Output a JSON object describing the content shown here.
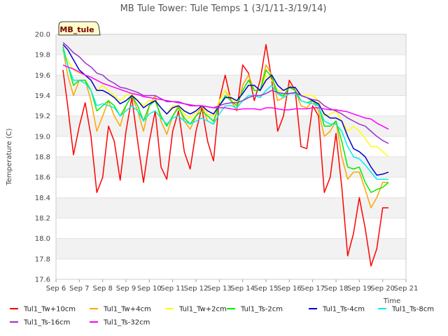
{
  "chart_data": {
    "type": "line",
    "title": "MB Tule Tower: Tule Temps 1 (3/1/11-3/19/14)",
    "xlabel": "Time",
    "ylabel": "Temperature (C)",
    "ylim": [
      17.6,
      20.0
    ],
    "xlim": [
      6,
      21
    ],
    "grid": "horizontal-bands",
    "legend_position": "bottom",
    "badge": "MB_tule",
    "x_ticks": [
      {
        "value": 6,
        "label": "Sep 6"
      },
      {
        "value": 7,
        "label": "Sep 7"
      },
      {
        "value": 8,
        "label": "Sep 8"
      },
      {
        "value": 9,
        "label": "Sep 9"
      },
      {
        "value": 10,
        "label": "Sep 10"
      },
      {
        "value": 11,
        "label": "Sep 11"
      },
      {
        "value": 12,
        "label": "Sep 12"
      },
      {
        "value": 13,
        "label": "Sep 13"
      },
      {
        "value": 14,
        "label": "Sep 14"
      },
      {
        "value": 15,
        "label": "Sep 15"
      },
      {
        "value": 16,
        "label": "Sep 16"
      },
      {
        "value": 17,
        "label": "Sep 17"
      },
      {
        "value": 18,
        "label": "Sep 18"
      },
      {
        "value": 19,
        "label": "Sep 19"
      },
      {
        "value": 20,
        "label": "Sep 20"
      },
      {
        "value": 21,
        "label": "Sep 21"
      }
    ],
    "y_ticks": [
      {
        "value": 17.6,
        "label": "17.6"
      },
      {
        "value": 17.8,
        "label": "17.8"
      },
      {
        "value": 18.0,
        "label": "18.0"
      },
      {
        "value": 18.2,
        "label": "18.2"
      },
      {
        "value": 18.4,
        "label": "18.4"
      },
      {
        "value": 18.6,
        "label": "18.6"
      },
      {
        "value": 18.8,
        "label": "18.8"
      },
      {
        "value": 19.0,
        "label": "19.0"
      },
      {
        "value": 19.2,
        "label": "19.2"
      },
      {
        "value": 19.4,
        "label": "19.4"
      },
      {
        "value": 19.6,
        "label": "19.6"
      },
      {
        "value": 19.8,
        "label": "19.8"
      },
      {
        "value": 20.0,
        "label": "20.0"
      }
    ],
    "x": [
      6.3,
      6.5,
      6.75,
      7.0,
      7.25,
      7.5,
      7.75,
      8.0,
      8.25,
      8.5,
      8.75,
      9.0,
      9.25,
      9.5,
      9.75,
      10.0,
      10.25,
      10.5,
      10.75,
      11.0,
      11.25,
      11.5,
      11.75,
      12.0,
      12.25,
      12.5,
      12.75,
      13.0,
      13.25,
      13.5,
      13.75,
      14.0,
      14.25,
      14.5,
      14.75,
      15.0,
      15.25,
      15.5,
      15.75,
      16.0,
      16.25,
      16.5,
      16.75,
      17.0,
      17.25,
      17.5,
      17.75,
      18.0,
      18.25,
      18.5,
      18.75,
      19.0,
      19.25,
      19.5,
      19.75,
      20.0,
      20.25
    ],
    "series": [
      {
        "name": "Tul1_Tw+10cm",
        "color": "#ff0000",
        "values": [
          19.65,
          19.3,
          18.82,
          19.1,
          19.33,
          19.0,
          18.45,
          18.6,
          19.1,
          18.95,
          18.57,
          19.05,
          19.38,
          18.95,
          18.55,
          18.95,
          19.25,
          18.7,
          18.58,
          19.05,
          19.25,
          18.85,
          18.68,
          19.05,
          19.28,
          18.95,
          18.76,
          19.35,
          19.6,
          19.35,
          19.25,
          19.7,
          19.62,
          19.35,
          19.55,
          19.9,
          19.55,
          19.05,
          19.2,
          19.55,
          19.45,
          18.9,
          18.88,
          19.3,
          19.2,
          18.45,
          18.6,
          19.03,
          18.5,
          17.83,
          18.05,
          18.4,
          18.1,
          17.73,
          17.9,
          18.3,
          18.3
        ]
      },
      {
        "name": "Tul1_Tw+4cm",
        "color": "#ffa500",
        "values": [
          19.85,
          19.6,
          19.4,
          19.55,
          19.55,
          19.35,
          19.05,
          19.2,
          19.35,
          19.2,
          19.1,
          19.3,
          19.4,
          19.25,
          19.05,
          19.3,
          19.4,
          19.15,
          19.02,
          19.2,
          19.3,
          19.15,
          19.07,
          19.2,
          19.3,
          19.15,
          19.12,
          19.35,
          19.45,
          19.35,
          19.25,
          19.5,
          19.6,
          19.45,
          19.45,
          19.7,
          19.6,
          19.35,
          19.38,
          19.5,
          19.45,
          19.3,
          19.28,
          19.35,
          19.25,
          19.0,
          19.05,
          19.15,
          18.8,
          18.58,
          18.65,
          18.65,
          18.48,
          18.3,
          18.4,
          18.55,
          18.55
        ]
      },
      {
        "name": "Tul1_Tw+2cm",
        "color": "#ffff00",
        "values": [
          19.82,
          19.75,
          19.65,
          19.62,
          19.6,
          19.55,
          19.45,
          19.5,
          19.45,
          19.4,
          19.35,
          19.4,
          19.42,
          19.35,
          19.3,
          19.35,
          19.35,
          19.28,
          19.22,
          19.3,
          19.3,
          19.22,
          19.18,
          19.25,
          19.3,
          19.22,
          19.2,
          19.35,
          19.45,
          19.38,
          19.32,
          19.45,
          19.55,
          19.45,
          19.45,
          19.6,
          19.55,
          19.45,
          19.45,
          19.48,
          19.45,
          19.4,
          19.4,
          19.4,
          19.35,
          19.2,
          19.22,
          19.25,
          19.15,
          19.05,
          19.1,
          19.05,
          18.98,
          18.9,
          18.9,
          18.85,
          18.8
        ]
      },
      {
        "name": "Tul1_Ts-2cm",
        "color": "#00ee00",
        "values": [
          19.88,
          19.7,
          19.5,
          19.55,
          19.55,
          19.45,
          19.25,
          19.3,
          19.35,
          19.3,
          19.2,
          19.3,
          19.4,
          19.3,
          19.15,
          19.3,
          19.35,
          19.2,
          19.1,
          19.2,
          19.28,
          19.18,
          19.12,
          19.2,
          19.25,
          19.2,
          19.15,
          19.3,
          19.4,
          19.35,
          19.3,
          19.45,
          19.55,
          19.45,
          19.45,
          19.65,
          19.58,
          19.42,
          19.4,
          19.48,
          19.45,
          19.35,
          19.33,
          19.35,
          19.3,
          19.1,
          19.1,
          19.15,
          18.95,
          18.7,
          18.68,
          18.7,
          18.55,
          18.45,
          18.48,
          18.5,
          18.55
        ]
      },
      {
        "name": "Tul1_Ts-4cm",
        "color": "#0000cc",
        "values": [
          19.9,
          19.85,
          19.75,
          19.65,
          19.6,
          19.55,
          19.45,
          19.45,
          19.42,
          19.38,
          19.32,
          19.35,
          19.4,
          19.35,
          19.28,
          19.32,
          19.35,
          19.28,
          19.22,
          19.28,
          19.3,
          19.25,
          19.22,
          19.25,
          19.3,
          19.25,
          19.22,
          19.3,
          19.38,
          19.38,
          19.35,
          19.42,
          19.5,
          19.5,
          19.45,
          19.55,
          19.6,
          19.5,
          19.45,
          19.48,
          19.48,
          19.4,
          19.38,
          19.35,
          19.32,
          19.22,
          19.18,
          19.18,
          19.15,
          19.0,
          18.88,
          18.85,
          18.8,
          18.7,
          18.62,
          18.63,
          18.65
        ]
      },
      {
        "name": "Tul1_Ts-8cm",
        "color": "#00eeee",
        "values": [
          19.85,
          19.7,
          19.55,
          19.55,
          19.52,
          19.45,
          19.3,
          19.32,
          19.3,
          19.28,
          19.2,
          19.25,
          19.3,
          19.25,
          19.15,
          19.22,
          19.25,
          19.18,
          19.12,
          19.18,
          19.2,
          19.15,
          19.12,
          19.15,
          19.18,
          19.15,
          19.12,
          19.22,
          19.3,
          19.3,
          19.28,
          19.35,
          19.4,
          19.4,
          19.38,
          19.45,
          19.5,
          19.42,
          19.38,
          19.42,
          19.42,
          19.35,
          19.33,
          19.32,
          19.3,
          19.15,
          19.12,
          19.12,
          19.05,
          18.9,
          18.8,
          18.78,
          18.72,
          18.65,
          18.58,
          18.58,
          18.58
        ]
      },
      {
        "name": "Tul1_Ts-16cm",
        "color": "#9933cc",
        "values": [
          19.92,
          19.88,
          19.82,
          19.78,
          19.72,
          19.68,
          19.62,
          19.6,
          19.55,
          19.52,
          19.48,
          19.47,
          19.45,
          19.43,
          19.4,
          19.4,
          19.4,
          19.37,
          19.34,
          19.34,
          19.34,
          19.32,
          19.3,
          19.3,
          19.3,
          19.29,
          19.28,
          19.3,
          19.32,
          19.33,
          19.33,
          19.35,
          19.38,
          19.4,
          19.4,
          19.42,
          19.45,
          19.43,
          19.42,
          19.42,
          19.43,
          19.4,
          19.38,
          19.36,
          19.35,
          19.3,
          19.27,
          19.25,
          19.22,
          19.18,
          19.15,
          19.12,
          19.1,
          19.05,
          19.0,
          18.96,
          18.93
        ]
      },
      {
        "name": "Tul1_Ts-32cm",
        "color": "#ff00ff",
        "values": [
          19.7,
          19.68,
          19.66,
          19.63,
          19.6,
          19.58,
          19.55,
          19.52,
          19.5,
          19.48,
          19.46,
          19.44,
          19.42,
          19.41,
          19.39,
          19.38,
          19.37,
          19.36,
          19.35,
          19.34,
          19.33,
          19.32,
          19.31,
          19.3,
          19.3,
          19.29,
          19.28,
          19.28,
          19.28,
          19.27,
          19.26,
          19.27,
          19.27,
          19.27,
          19.26,
          19.28,
          19.28,
          19.27,
          19.26,
          19.26,
          19.27,
          19.27,
          19.27,
          19.28,
          19.28,
          19.27,
          19.26,
          19.26,
          19.25,
          19.24,
          19.22,
          19.2,
          19.18,
          19.17,
          19.13,
          19.1,
          19.07
        ]
      }
    ]
  }
}
